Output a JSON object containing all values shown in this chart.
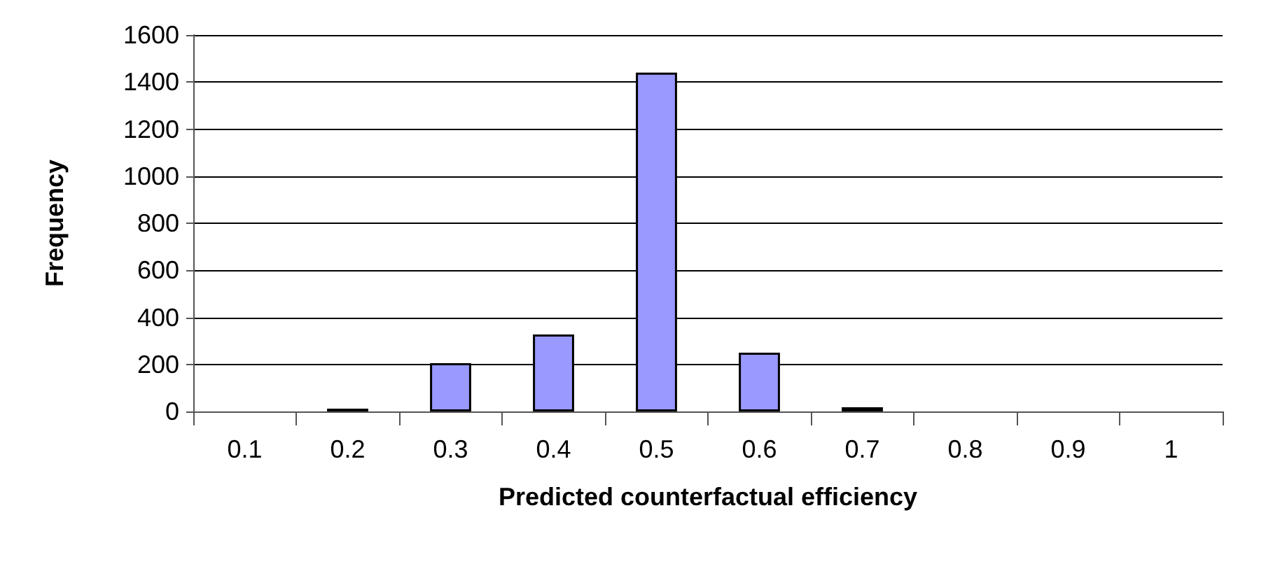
{
  "chart_data": {
    "type": "bar",
    "xlabel": "Predicted counterfactual efficiency",
    "ylabel": "Frequency",
    "categories": [
      "0.1",
      "0.2",
      "0.3",
      "0.4",
      "0.5",
      "0.6",
      "0.7",
      "0.8",
      "0.9",
      "1"
    ],
    "values": [
      0,
      12,
      205,
      327,
      1440,
      250,
      18,
      0,
      0,
      0
    ],
    "color": "#9999ff",
    "ylim": [
      0,
      1600
    ],
    "yticks": [
      0,
      200,
      400,
      600,
      800,
      1000,
      1200,
      1400,
      1600
    ],
    "grid": "y"
  }
}
